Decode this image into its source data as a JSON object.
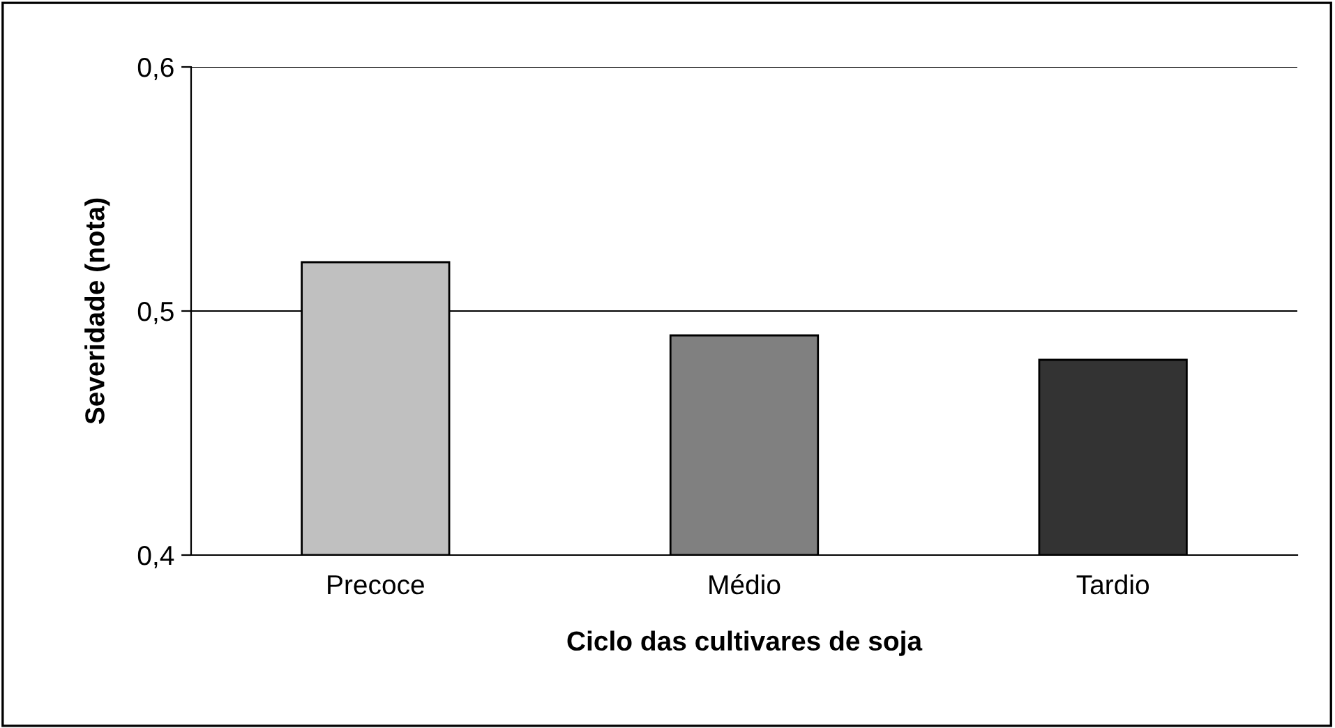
{
  "chart_data": {
    "type": "bar",
    "xlabel": "Ciclo das cultivares de soja",
    "ylabel": "Severidade (nota)",
    "categories": [
      "Precoce",
      "Médio",
      "Tardio"
    ],
    "values": [
      0.52,
      0.49,
      0.48
    ],
    "colors": [
      "#c0c0c0",
      "#808080",
      "#333333"
    ],
    "ylim": [
      0.4,
      0.6
    ],
    "yticks": [
      {
        "value": 0.4,
        "label": "0,4"
      },
      {
        "value": 0.5,
        "label": "0,5"
      },
      {
        "value": 0.6,
        "label": "0,6"
      }
    ],
    "grid": "y",
    "legend": false
  }
}
